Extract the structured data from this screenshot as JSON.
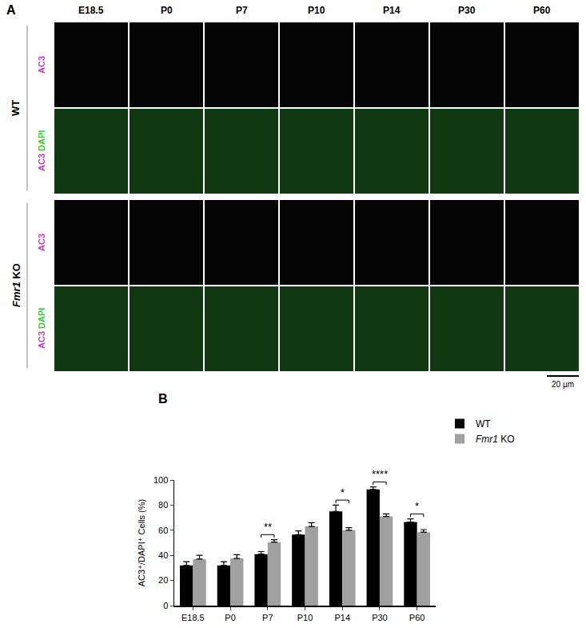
{
  "panel_a": {
    "label": "A",
    "columns": [
      "E18.5",
      "P0",
      "P7",
      "P10",
      "P14",
      "P30",
      "P60"
    ],
    "groups": [
      {
        "name": "WT",
        "rows": [
          [
            "AC3"
          ],
          [
            "AC3",
            "DAPI"
          ]
        ]
      },
      {
        "name": "Fmr1 KO",
        "rows": [
          [
            "AC3"
          ],
          [
            "AC3",
            "DAPI"
          ]
        ]
      }
    ],
    "scale_bar": "20 µm"
  },
  "panel_b": {
    "label": "B"
  },
  "chart_data": {
    "type": "bar",
    "y_label": "AC3⁺/DAPI⁺ Cells (%)",
    "categories": [
      "E18.5",
      "P0",
      "P7",
      "P10",
      "P14",
      "P30",
      "P60"
    ],
    "series": [
      {
        "name": "WT",
        "color": "#000000",
        "values": [
          32,
          32,
          41,
          56.5,
          75,
          92.5,
          66.5
        ],
        "errors": [
          3,
          3,
          2,
          3,
          5,
          2,
          2.5
        ]
      },
      {
        "name": "Fmr1 KO",
        "color": "#a0a0a0",
        "values": [
          37,
          37.5,
          50.5,
          63,
          60,
          71,
          58.5
        ],
        "errors": [
          3,
          3,
          2,
          3,
          2,
          2,
          2
        ]
      }
    ],
    "annotations": [
      {
        "category": "P7",
        "text": "**"
      },
      {
        "category": "P14",
        "text": "*"
      },
      {
        "category": "P30",
        "text": "****"
      },
      {
        "category": "P60",
        "text": "*"
      }
    ],
    "ylim": [
      0,
      100
    ],
    "yticks": [
      0,
      20,
      40,
      60,
      80,
      100
    ],
    "grid": false,
    "legend": "top right"
  }
}
